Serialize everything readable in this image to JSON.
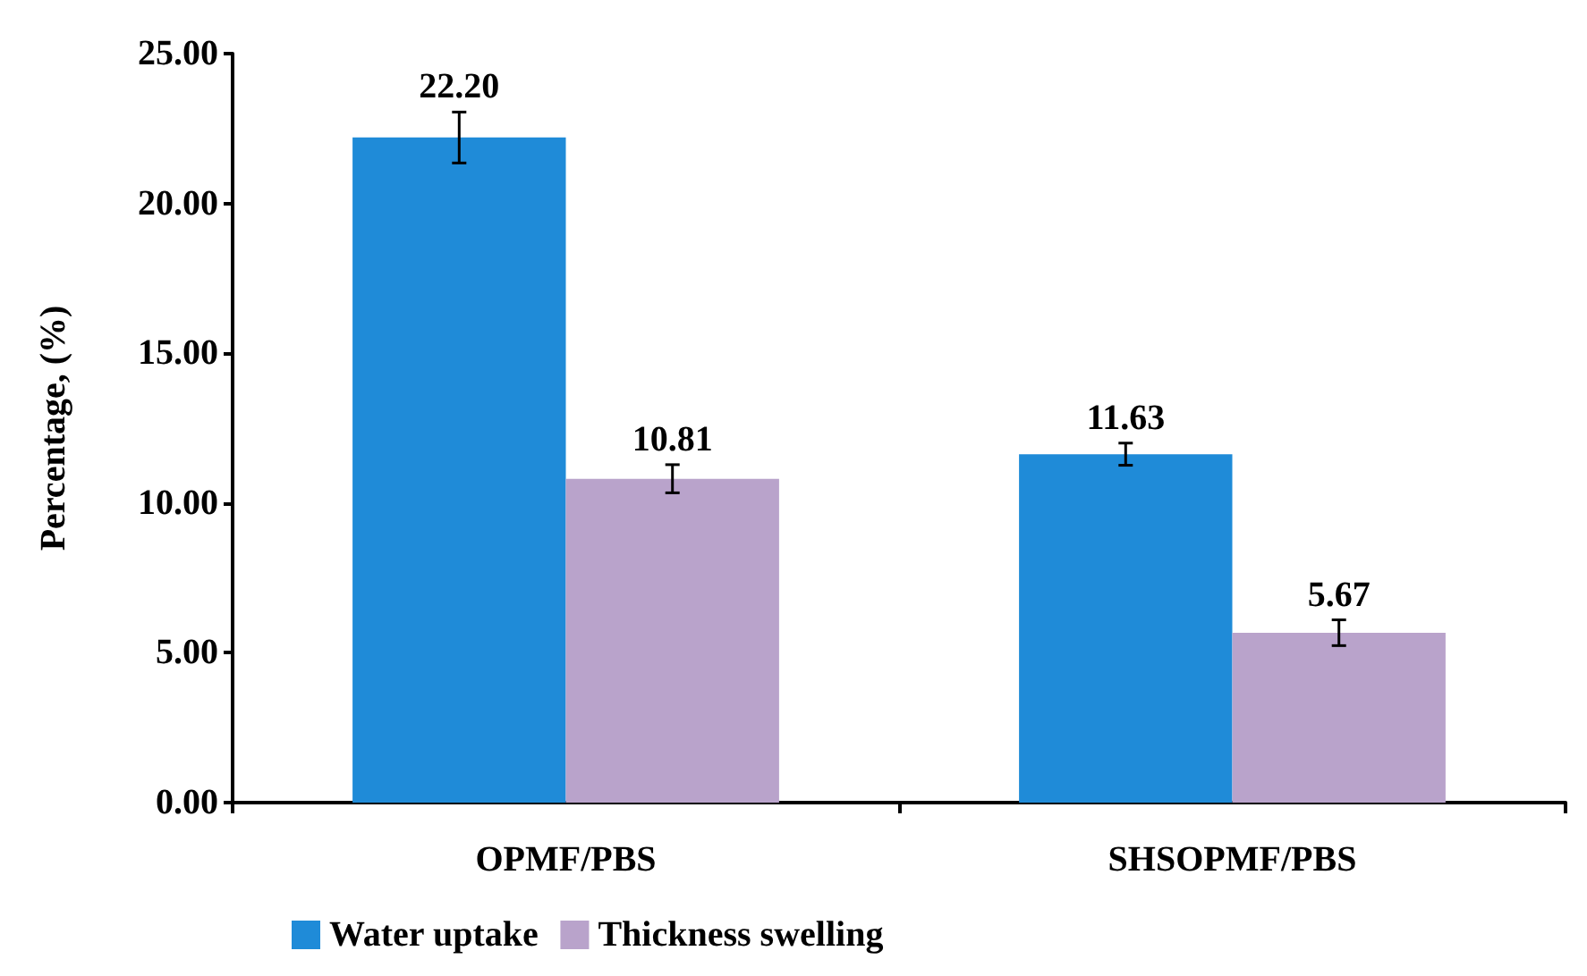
{
  "chart_data": {
    "type": "bar",
    "ylabel": "Percentage, (%)",
    "categories": [
      "OPMF/PBS",
      "SHSOPMF/PBS"
    ],
    "series": [
      {
        "name": "Water uptake",
        "color": "#1f8bd8",
        "values": [
          22.2,
          11.63
        ],
        "errors": [
          0.85,
          0.37
        ],
        "value_labels": [
          "22.20",
          "11.63"
        ]
      },
      {
        "name": "Thickness swelling",
        "color": "#b9a3cb",
        "values": [
          10.81,
          5.67
        ],
        "errors": [
          0.47,
          0.43
        ],
        "value_labels": [
          "10.81",
          "5.67"
        ]
      }
    ],
    "ylim": [
      0,
      25
    ],
    "yticks": [
      {
        "value": 0,
        "label": "0.00"
      },
      {
        "value": 5,
        "label": "5.00"
      },
      {
        "value": 10,
        "label": "10.00"
      },
      {
        "value": 15,
        "label": "15.00"
      },
      {
        "value": 20,
        "label": "20.00"
      },
      {
        "value": 25,
        "label": "25.00"
      }
    ],
    "grid": false,
    "legend": "bottom left"
  }
}
